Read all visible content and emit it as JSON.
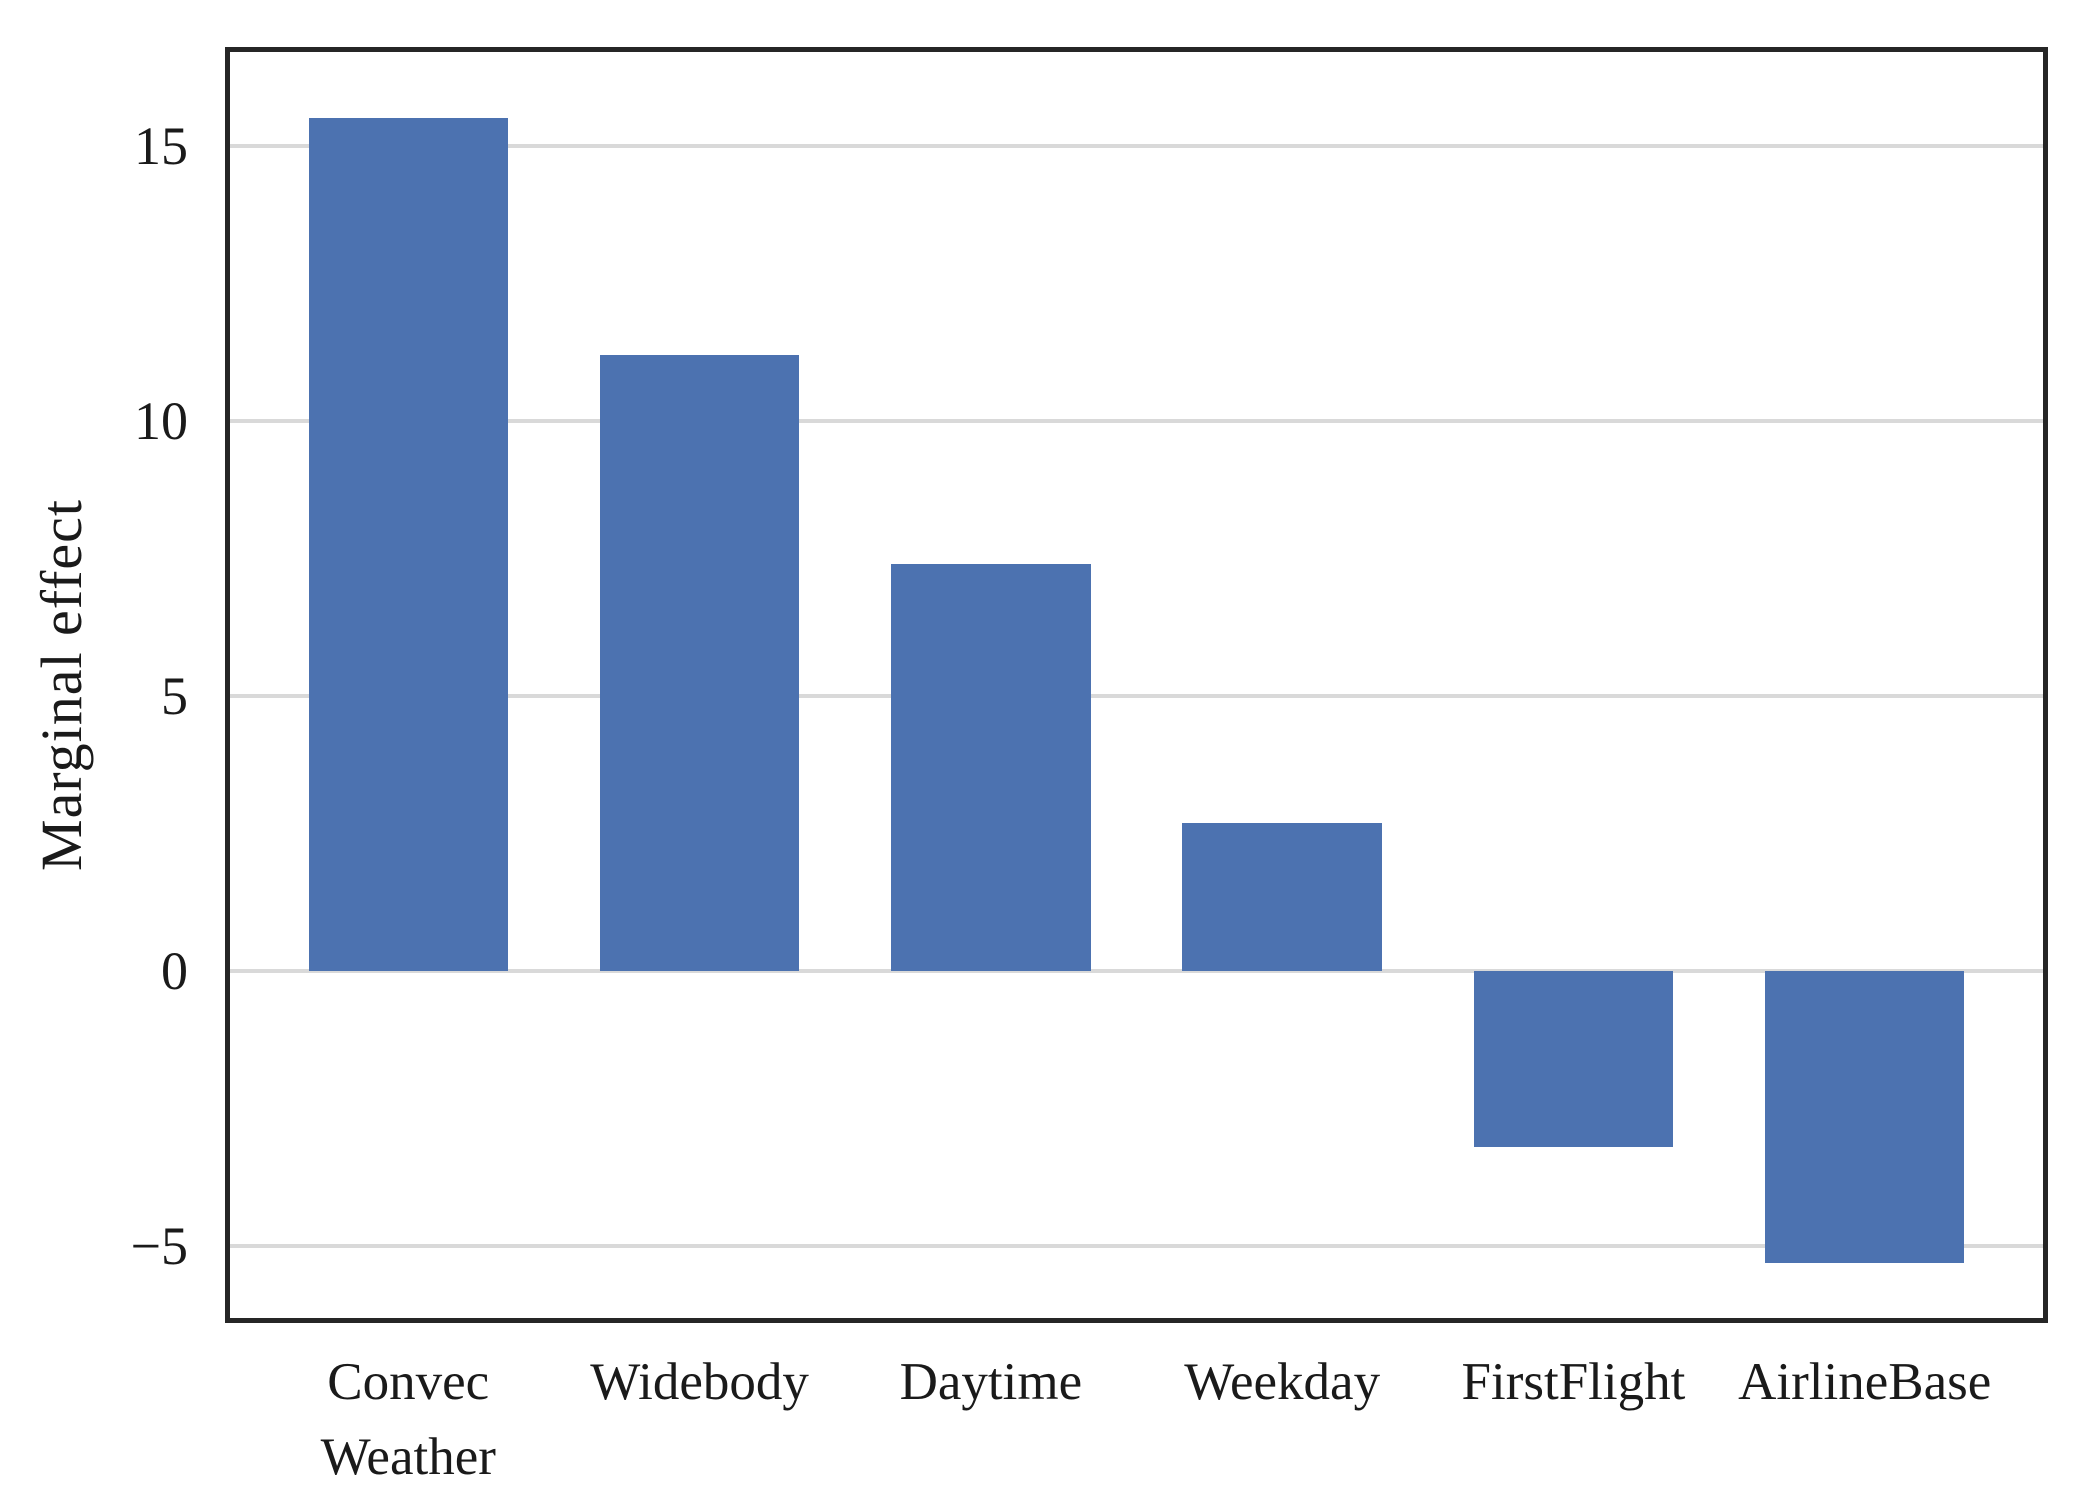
{
  "chart_data": {
    "type": "bar",
    "title": "",
    "xlabel": "",
    "ylabel": "Marginal effect",
    "categories": [
      "Convec\nWeather",
      "Widebody",
      "Daytime",
      "Weekday",
      "FirstFlight",
      "AirlineBase"
    ],
    "values": [
      15.5,
      11.2,
      7.4,
      2.7,
      -3.2,
      -5.3
    ],
    "ylim": [
      -6.3,
      16.7
    ],
    "yticks": [
      15,
      10,
      5,
      0,
      -5
    ],
    "ytick_labels": [
      "15",
      "10",
      "5",
      "0",
      "−5"
    ],
    "grid": "horizontal-only",
    "legend_position": "none",
    "colors": {
      "bar": "#4C72B0",
      "gridline": "#D9D9D9",
      "spine": "#262626",
      "text": "#1A1A1A",
      "background": "#FFFFFF"
    }
  }
}
